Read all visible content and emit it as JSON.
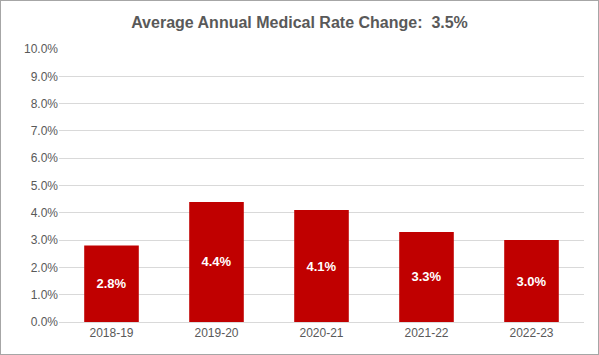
{
  "chart_data": {
    "type": "bar",
    "title": "Average Annual Medical Rate Change:  3.5%",
    "categories": [
      "2018-19",
      "2019-20",
      "2020-21",
      "2021-22",
      "2022-23"
    ],
    "values": [
      2.8,
      4.4,
      4.1,
      3.3,
      3.0
    ],
    "value_labels": [
      "2.8%",
      "4.4%",
      "4.1%",
      "3.3%",
      "3.0%"
    ],
    "color": "#c00000",
    "ylim": [
      0,
      10
    ],
    "yticks": [
      {
        "value": 0,
        "label": "0.0%"
      },
      {
        "value": 1,
        "label": "1.0%"
      },
      {
        "value": 2,
        "label": "2.0%"
      },
      {
        "value": 3,
        "label": "3.0%"
      },
      {
        "value": 4,
        "label": "4.0%"
      },
      {
        "value": 5,
        "label": "5.0%"
      },
      {
        "value": 6,
        "label": "6.0%"
      },
      {
        "value": 7,
        "label": "7.0%"
      },
      {
        "value": 8,
        "label": "8.0%"
      },
      {
        "value": 9,
        "label": "9.0%"
      },
      {
        "value": 10,
        "label": "10.0%"
      }
    ],
    "grid": true,
    "data_labels": true
  }
}
